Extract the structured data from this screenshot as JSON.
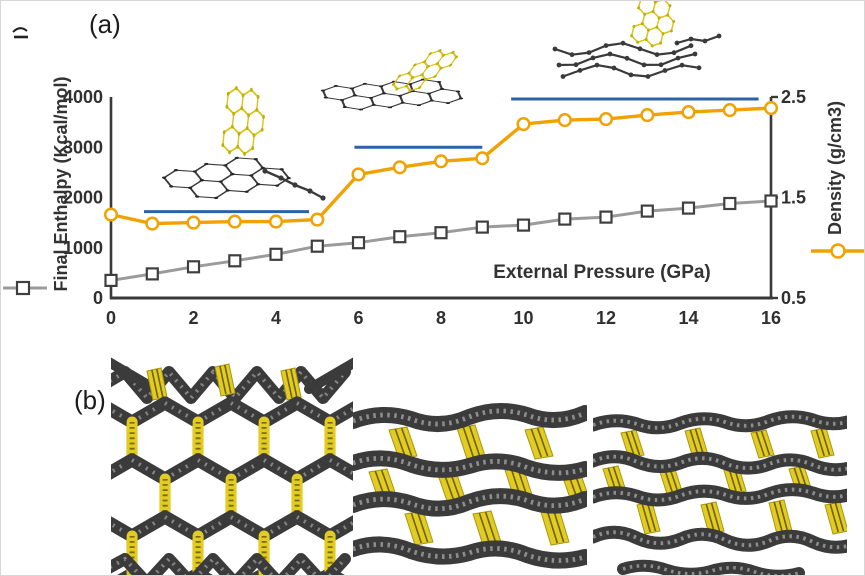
{
  "panels": {
    "a": {
      "label": "(a)"
    },
    "b": {
      "label": "(b)"
    }
  },
  "chart_data": {
    "type": "line",
    "title": "",
    "xlabel": "External Pressure (GPa)",
    "ylabel_left": "Final Enthalpy (Kcal/mol)",
    "ylabel_right": "Density (g/cm3)",
    "grid": false,
    "x": [
      0,
      1,
      2,
      3,
      4,
      5,
      6,
      7,
      8,
      9,
      10,
      11,
      12,
      13,
      14,
      15,
      16
    ],
    "x_ticks": [
      "0",
      "2",
      "4",
      "6",
      "8",
      "10",
      "12",
      "14",
      "16"
    ],
    "left_axis": {
      "range": [
        0,
        4000
      ],
      "ticks": [
        "0",
        "1000",
        "2000",
        "3000",
        "4000"
      ]
    },
    "right_axis": {
      "range": [
        0.5,
        2.5
      ],
      "ticks": [
        "0.5",
        "1.5",
        "2.5"
      ]
    },
    "series": [
      {
        "name": "Final Enthalpy (Kcal/mol)",
        "axis": "left",
        "marker": "square",
        "color": "#9b9b9b",
        "marker_color": "#3f3f3f",
        "values": [
          350,
          480,
          620,
          740,
          870,
          1030,
          1100,
          1220,
          1300,
          1410,
          1450,
          1570,
          1610,
          1730,
          1790,
          1880,
          1930
        ]
      },
      {
        "name": "Density (g/cm3)",
        "axis": "right",
        "marker": "circle",
        "color": "#f0a202",
        "marker_color": "#f0a202",
        "values": [
          1.33,
          1.24,
          1.25,
          1.26,
          1.26,
          1.28,
          1.73,
          1.8,
          1.86,
          1.89,
          2.23,
          2.27,
          2.28,
          2.32,
          2.35,
          2.37,
          2.39
        ]
      }
    ],
    "annotations": {
      "plateau_color": "#2e62a8",
      "plateau_lines": [
        {
          "x_start": 0.8,
          "x_end": 4.8,
          "level_density": 1.36
        },
        {
          "x_start": 5.9,
          "x_end": 9.0,
          "level_density": 2.0
        },
        {
          "x_start": 9.7,
          "x_end": 15.7,
          "level_density": 2.48
        }
      ]
    },
    "legend_position": "rotated-axis-marker-labels"
  },
  "insets": [
    {
      "name": "molecule-inset-low-pressure",
      "description": "flat grey flake with perpendicular yellow flake"
    },
    {
      "name": "molecule-inset-mid-pressure",
      "description": "grey flake with yellow flap tilted upward"
    },
    {
      "name": "molecule-inset-high-pressure",
      "description": "buckled grey flake with folded yellow flap"
    }
  ],
  "structures_b": [
    {
      "name": "framework-open-honeycomb"
    },
    {
      "name": "framework-partially-collapsed-layers"
    },
    {
      "name": "framework-fully-collapsed-layers"
    }
  ],
  "colors": {
    "axis": "#3a3a3a",
    "enthalpy_line": "#9b9b9b",
    "density_line": "#f0a202",
    "plateau_line": "#2e62a8",
    "structure_dark": "#3b3b3b",
    "structure_yellow": "#e2cc24"
  }
}
